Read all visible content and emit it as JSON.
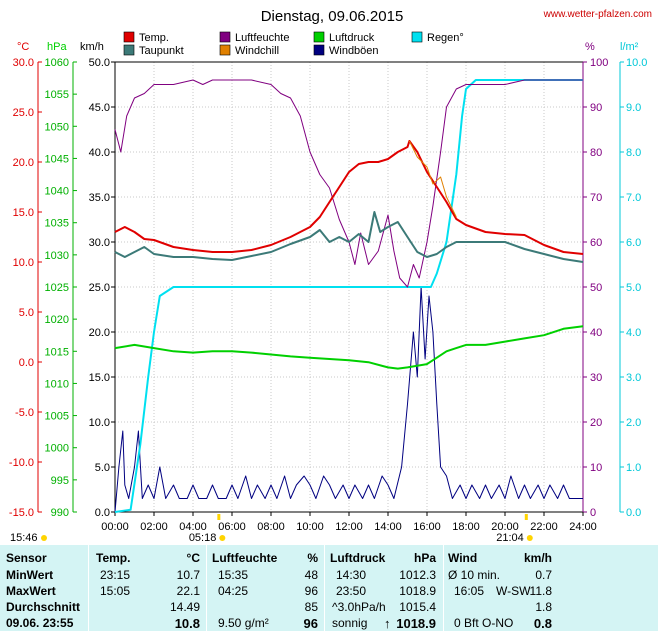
{
  "title": "Dienstag, 09.06.2015",
  "site": "www.wetter-pfalzen.com",
  "colors": {
    "temp": "#e00000",
    "taupunkt": "#3c7a78",
    "luftfeuchte": "#800080",
    "windchill": "#e08000",
    "luftdruck": "#00d000",
    "windboeen": "#000080",
    "regen": "#00e0f0"
  },
  "chart_data": {
    "type": "line",
    "title": "Dienstag, 09.06.2015",
    "x_range": [
      0,
      24
    ],
    "x_ticks": [
      "00:00",
      "02:00",
      "04:00",
      "06:00",
      "08:00",
      "10:00",
      "12:00",
      "14:00",
      "16:00",
      "18:00",
      "20:00",
      "22:00",
      "24:00"
    ],
    "axes": {
      "temp": {
        "unit": "°C",
        "range": [
          -15,
          30
        ],
        "ticks": [
          "30.0",
          "25.0",
          "20.0",
          "15.0",
          "10.0",
          "5.0",
          "0.0",
          "-5.0",
          "-10.0",
          "-15.0"
        ]
      },
      "pressure": {
        "unit": "hPa",
        "range": [
          990,
          1060
        ],
        "ticks": [
          "1060",
          "1055",
          "1050",
          "1045",
          "1040",
          "1035",
          "1030",
          "1025",
          "1020",
          "1015",
          "1010",
          "1005",
          "1000",
          "995",
          "990"
        ]
      },
      "wind": {
        "unit": "km/h",
        "range": [
          0,
          50
        ],
        "ticks": [
          "50.0",
          "45.0",
          "40.0",
          "35.0",
          "30.0",
          "25.0",
          "20.0",
          "15.0",
          "10.0",
          "5.0",
          "0.0"
        ]
      },
      "humidity": {
        "unit": "%",
        "range": [
          0,
          100
        ],
        "ticks": [
          "100",
          "90",
          "80",
          "70",
          "60",
          "50",
          "40",
          "30",
          "20",
          "10",
          "0"
        ]
      },
      "rain": {
        "unit": "l/m²",
        "range": [
          0,
          10
        ],
        "ticks": [
          "10.0",
          "9.0",
          "8.0",
          "7.0",
          "6.0",
          "5.0",
          "4.0",
          "3.0",
          "2.0",
          "1.0",
          "0.0"
        ]
      }
    },
    "legend": [
      {
        "name": "Temp.",
        "color": "#e00000"
      },
      {
        "name": "Taupunkt",
        "color": "#3c7a78"
      },
      {
        "name": "Luftfeuchte",
        "color": "#800080"
      },
      {
        "name": "Windchill",
        "color": "#e08000"
      },
      {
        "name": "Luftdruck",
        "color": "#00d000"
      },
      {
        "name": "Windböen",
        "color": "#000080"
      },
      {
        "name": "Regen°",
        "color": "#00e0f0"
      }
    ],
    "sunrise": "05:18",
    "sunset": "21:04",
    "daylength": "15:46",
    "series": {
      "temp": [
        [
          0,
          13
        ],
        [
          0.5,
          13.5
        ],
        [
          1,
          13
        ],
        [
          1.5,
          12.3
        ],
        [
          2,
          12.2
        ],
        [
          3,
          11.5
        ],
        [
          4,
          11.2
        ],
        [
          5,
          11
        ],
        [
          6,
          11
        ],
        [
          7,
          11.2
        ],
        [
          8,
          11.7
        ],
        [
          9,
          12.5
        ],
        [
          10,
          13.5
        ],
        [
          10.5,
          14.5
        ],
        [
          11,
          16
        ],
        [
          11.5,
          17.5
        ],
        [
          12,
          19
        ],
        [
          12.5,
          19.8
        ],
        [
          13,
          20
        ],
        [
          13.5,
          20
        ],
        [
          14,
          20.3
        ],
        [
          14.5,
          21
        ],
        [
          15,
          21.5
        ],
        [
          15.1,
          22.1
        ],
        [
          15.5,
          21
        ],
        [
          16,
          19
        ],
        [
          16.5,
          17.5
        ],
        [
          17,
          16
        ],
        [
          17.5,
          14.3
        ],
        [
          18,
          13.7
        ],
        [
          19,
          13
        ],
        [
          20,
          12.8
        ],
        [
          21,
          12.7
        ],
        [
          22,
          11.7
        ],
        [
          23,
          11
        ],
        [
          24,
          10.8
        ]
      ],
      "taupunkt": [
        [
          0,
          11
        ],
        [
          0.5,
          10.5
        ],
        [
          1,
          11
        ],
        [
          1.5,
          11.5
        ],
        [
          2,
          10.8
        ],
        [
          3,
          10.5
        ],
        [
          4,
          10.5
        ],
        [
          5,
          10.3
        ],
        [
          6,
          10.2
        ],
        [
          7,
          10.6
        ],
        [
          8,
          11
        ],
        [
          9,
          11.8
        ],
        [
          10,
          12.5
        ],
        [
          10.5,
          13.2
        ],
        [
          11,
          12
        ],
        [
          11.5,
          12.5
        ],
        [
          12,
          12
        ],
        [
          12.5,
          12.8
        ],
        [
          13,
          12
        ],
        [
          13.3,
          15
        ],
        [
          13.6,
          13
        ],
        [
          14,
          13.5
        ],
        [
          14.5,
          14
        ],
        [
          15,
          12.5
        ],
        [
          15.5,
          11
        ],
        [
          16,
          10.5
        ],
        [
          16.5,
          10.8
        ],
        [
          17,
          11.5
        ],
        [
          17.5,
          12
        ],
        [
          18,
          12
        ],
        [
          19,
          12
        ],
        [
          20,
          12
        ],
        [
          21,
          11.3
        ],
        [
          22,
          10.8
        ],
        [
          23,
          10.3
        ],
        [
          24,
          10
        ]
      ],
      "windchill": [
        [
          15.1,
          22.1
        ],
        [
          15.5,
          20.5
        ],
        [
          16,
          19.5
        ],
        [
          16.3,
          17.8
        ],
        [
          16.7,
          18.5
        ],
        [
          17,
          16.5
        ],
        [
          17.5,
          14.5
        ]
      ],
      "luftfeuchte": [
        [
          0,
          85
        ],
        [
          0.3,
          80
        ],
        [
          0.6,
          88
        ],
        [
          1,
          92
        ],
        [
          1.5,
          93
        ],
        [
          2,
          95
        ],
        [
          3,
          95
        ],
        [
          4,
          96
        ],
        [
          4.5,
          95
        ],
        [
          5,
          96
        ],
        [
          6,
          96
        ],
        [
          7,
          96
        ],
        [
          8,
          95
        ],
        [
          8.5,
          93
        ],
        [
          9,
          92
        ],
        [
          9.5,
          88
        ],
        [
          10,
          80
        ],
        [
          10.5,
          75
        ],
        [
          11,
          72
        ],
        [
          11.5,
          65
        ],
        [
          12,
          60
        ],
        [
          12.3,
          55
        ],
        [
          12.6,
          62
        ],
        [
          13,
          55
        ],
        [
          13.5,
          58
        ],
        [
          14,
          66
        ],
        [
          14.3,
          58
        ],
        [
          14.6,
          52
        ],
        [
          15,
          50
        ],
        [
          15.3,
          55
        ],
        [
          15.6,
          52
        ],
        [
          16,
          60
        ],
        [
          16.3,
          68
        ],
        [
          16.7,
          80
        ],
        [
          17,
          90
        ],
        [
          17.5,
          94
        ],
        [
          18,
          95
        ],
        [
          19,
          95
        ],
        [
          20,
          95
        ],
        [
          21,
          96
        ],
        [
          22,
          96
        ],
        [
          23,
          96
        ],
        [
          24,
          96
        ]
      ],
      "luftdruck": [
        [
          0,
          1015.5
        ],
        [
          1,
          1016
        ],
        [
          2,
          1015.5
        ],
        [
          3,
          1015
        ],
        [
          4,
          1014.8
        ],
        [
          5,
          1015
        ],
        [
          6,
          1015
        ],
        [
          7,
          1014.8
        ],
        [
          8,
          1014.5
        ],
        [
          9,
          1014.2
        ],
        [
          10,
          1014
        ],
        [
          11,
          1013.8
        ],
        [
          12,
          1013.6
        ],
        [
          13,
          1013.3
        ],
        [
          14,
          1012.5
        ],
        [
          14.5,
          1012.3
        ],
        [
          15,
          1012.5
        ],
        [
          16,
          1013
        ],
        [
          16.5,
          1014
        ],
        [
          17,
          1015
        ],
        [
          17.5,
          1015.5
        ],
        [
          18,
          1016
        ],
        [
          19,
          1016
        ],
        [
          20,
          1016.5
        ],
        [
          21,
          1017
        ],
        [
          22,
          1017.5
        ],
        [
          23,
          1018.5
        ],
        [
          24,
          1018.9
        ]
      ],
      "regen": [
        [
          0,
          0
        ],
        [
          0.8,
          0.05
        ],
        [
          1.3,
          1.5
        ],
        [
          1.7,
          3
        ],
        [
          2,
          4
        ],
        [
          2.3,
          4.8
        ],
        [
          3,
          5
        ],
        [
          4,
          5
        ],
        [
          5,
          5
        ],
        [
          8,
          5
        ],
        [
          12,
          5
        ],
        [
          15,
          5
        ],
        [
          16.2,
          5
        ],
        [
          16.5,
          5.3
        ],
        [
          17,
          6
        ],
        [
          17.5,
          7.5
        ],
        [
          17.8,
          8.8
        ],
        [
          18,
          9.4
        ],
        [
          18.5,
          9.6
        ],
        [
          19,
          9.6
        ],
        [
          20,
          9.6
        ],
        [
          21,
          9.6
        ],
        [
          22,
          9.6
        ],
        [
          23,
          9.6
        ],
        [
          24,
          9.6
        ]
      ],
      "windboeen": [
        [
          0,
          0
        ],
        [
          0.2,
          5
        ],
        [
          0.4,
          9
        ],
        [
          0.5,
          3
        ],
        [
          0.7,
          1.5
        ],
        [
          1,
          5
        ],
        [
          1.2,
          9
        ],
        [
          1.4,
          1.5
        ],
        [
          1.7,
          3
        ],
        [
          2,
          1.5
        ],
        [
          2.3,
          5
        ],
        [
          2.6,
          1.5
        ],
        [
          3,
          3
        ],
        [
          3.3,
          1.5
        ],
        [
          3.7,
          1.5
        ],
        [
          4,
          3
        ],
        [
          4.3,
          1.5
        ],
        [
          4.7,
          1.5
        ],
        [
          5,
          3
        ],
        [
          5.3,
          1.5
        ],
        [
          5.7,
          1.5
        ],
        [
          6,
          3
        ],
        [
          6.3,
          1.5
        ],
        [
          6.7,
          4
        ],
        [
          7,
          1.5
        ],
        [
          7.3,
          3
        ],
        [
          7.7,
          1.5
        ],
        [
          8,
          3
        ],
        [
          8.3,
          1.5
        ],
        [
          8.7,
          4
        ],
        [
          9,
          1.5
        ],
        [
          9.3,
          3
        ],
        [
          9.7,
          4
        ],
        [
          10,
          3
        ],
        [
          10.3,
          1.5
        ],
        [
          10.7,
          4
        ],
        [
          11,
          3
        ],
        [
          11.3,
          1.5
        ],
        [
          11.7,
          3
        ],
        [
          12,
          1.5
        ],
        [
          12.3,
          3
        ],
        [
          12.7,
          1.5
        ],
        [
          13,
          3
        ],
        [
          13.3,
          1.5
        ],
        [
          13.7,
          4
        ],
        [
          14,
          3
        ],
        [
          14.3,
          1.5
        ],
        [
          14.7,
          5
        ],
        [
          15,
          12
        ],
        [
          15.3,
          20
        ],
        [
          15.5,
          15
        ],
        [
          15.7,
          25
        ],
        [
          15.9,
          17
        ],
        [
          16.1,
          24
        ],
        [
          16.3,
          20
        ],
        [
          16.5,
          12
        ],
        [
          16.7,
          5
        ],
        [
          17,
          4
        ],
        [
          17.3,
          1.5
        ],
        [
          17.7,
          3
        ],
        [
          18,
          1.5
        ],
        [
          18.3,
          3
        ],
        [
          18.7,
          1.5
        ],
        [
          19,
          3
        ],
        [
          19.3,
          1.5
        ],
        [
          19.7,
          3
        ],
        [
          20,
          1.5
        ],
        [
          20.3,
          4
        ],
        [
          20.7,
          1.5
        ],
        [
          21,
          3
        ],
        [
          21.3,
          1.5
        ],
        [
          21.7,
          3
        ],
        [
          22,
          1.5
        ],
        [
          22.3,
          3
        ],
        [
          22.7,
          1.5
        ],
        [
          23,
          3
        ],
        [
          23.3,
          1.5
        ],
        [
          23.7,
          1.5
        ],
        [
          24,
          1.5
        ]
      ]
    }
  },
  "summary": {
    "headers": {
      "sensor": "Sensor",
      "temp": "Temp.",
      "temp_unit": "°C",
      "hum": "Luftfeuchte",
      "hum_unit": "%",
      "press": "Luftdruck",
      "press_unit": "hPa",
      "wind": "Wind",
      "wind_unit": "km/h"
    },
    "rows": {
      "min": {
        "label": "MinWert",
        "t_time": "23:15",
        "t_val": "10.7",
        "h_time": "15:35",
        "h_val": "48",
        "p_time": "14:30",
        "p_val": "1012.3",
        "w_time": "Ø 10 min.",
        "w_val": "0.7"
      },
      "max": {
        "label": "MaxWert",
        "t_time": "15:05",
        "t_val": "22.1",
        "h_time": "04:25",
        "h_val": "96",
        "p_time": "23:50",
        "p_val": "1018.9",
        "w_time": "16:05",
        "w_dir": "W-SW",
        "w_val": "11.8"
      },
      "avg": {
        "label": "Durchschnitt",
        "t_val": "14.49",
        "h_val": "85",
        "p_time": "^3.0hPa/h",
        "p_val": "1015.4",
        "w_val": "1.8"
      },
      "now": {
        "label": "09.06. 23:55",
        "t_val": "10.8",
        "h_time": "9.50 g/m²",
        "h_val": "96",
        "p_time": "sonnig",
        "p_arrow": "↑",
        "p_val": "1018.9",
        "w_time": "0 Bft O-NO",
        "w_val": "0.8"
      }
    }
  }
}
